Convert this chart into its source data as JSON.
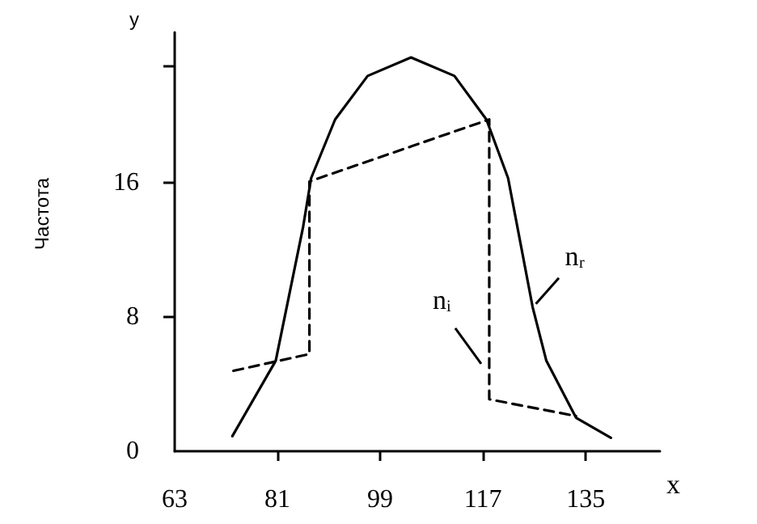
{
  "chart_data": {
    "type": "line",
    "ylabel": "Частота",
    "xlabel": "x",
    "annotations": [
      "y"
    ],
    "xlim": [
      63,
      148
    ],
    "xticks": [
      63,
      81,
      99,
      117,
      135
    ],
    "ylim": [
      0,
      25
    ],
    "yticks": [
      0,
      8,
      16,
      {
        "value": 23,
        "label": null
      }
    ],
    "grid": false,
    "legend": false,
    "marker": "none",
    "series": [
      {
        "name": "nᵣ",
        "color": "#000000",
        "line_style": "solid",
        "x": [
          73.1,
          80.7,
          85.5,
          86.9,
          91.1,
          96.8,
          104.4,
          112,
          117.6,
          121.4,
          125.7,
          128.1,
          133.3,
          139.4
        ],
        "values": [
          0.9,
          5.4,
          13.4,
          16.3,
          19.8,
          22.4,
          23.5,
          22.4,
          19.8,
          16.3,
          8.6,
          5.4,
          2.0,
          0.8
        ]
      },
      {
        "name": "nᵢ",
        "color": "#000000",
        "line_style": "dashed",
        "x": [
          73.3,
          86.6,
          86.6,
          118.1,
          118.1,
          133.3
        ],
        "values": [
          4.8,
          5.8,
          16.1,
          19.8,
          3.1,
          2.1
        ]
      }
    ]
  }
}
